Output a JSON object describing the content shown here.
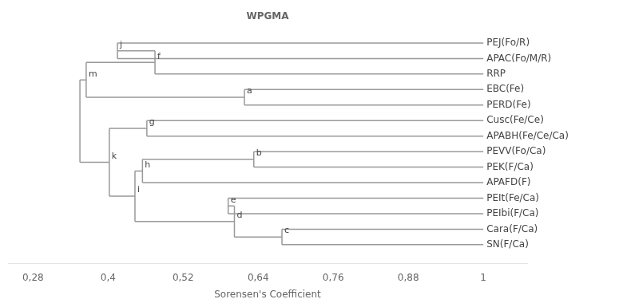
{
  "chart_data": {
    "type": "dendrogram",
    "title": "WPGMA",
    "xlabel": "Sorensen's Coefficient",
    "leaves": [
      "PEJ(Fo/R)",
      "APAC(Fo/M/R)",
      "RRP",
      "EBC(Fe)",
      "PERD(Fe)",
      "Cusc(Fe/Ce)",
      "APABH(Fe/Ce/Ca)",
      "PEVV(Fo/Ca)",
      "PEK(F/Ca)",
      "APAFD(F)",
      "PEIt(Fe/Ca)",
      "PEIbi(F/Ca)",
      "Cara(F/Ca)",
      "SN(F/Ca)"
    ],
    "leaf_x": 1,
    "tree": {
      "x": 0.355,
      "children": [
        {
          "name": "m",
          "x": 0.365,
          "children": [
            {
              "name": "f",
              "x": 0.475,
              "children": [
                {
                  "name": "j",
                  "x": 0.415,
                  "children": [
                    "PEJ(Fo/R)",
                    "APAC(Fo/M/R)"
                  ]
                },
                "RRP"
              ]
            },
            {
              "name": "a",
              "x": 0.618,
              "children": [
                "EBC(Fe)",
                "PERD(Fe)"
              ]
            }
          ]
        },
        {
          "name": "k",
          "x": 0.402,
          "children": [
            {
              "name": "g",
              "x": 0.462,
              "children": [
                "Cusc(Fe/Ce)",
                "APABH(Fe/Ce/Ca)"
              ]
            },
            {
              "name": "i",
              "x": 0.443,
              "children": [
                {
                  "name": "h",
                  "x": 0.455,
                  "children": [
                    {
                      "name": "b",
                      "x": 0.633,
                      "children": [
                        "PEVV(Fo/Ca)",
                        "PEK(F/Ca)"
                      ]
                    },
                    "APAFD(F)"
                  ]
                },
                {
                  "name": "d",
                  "x": 0.602,
                  "children": [
                    {
                      "name": "e",
                      "x": 0.592,
                      "children": [
                        "PEIt(Fe/Ca)",
                        "PEIbi(F/Ca)"
                      ]
                    },
                    {
                      "name": "c",
                      "x": 0.678,
                      "children": [
                        "Cara(F/Ca)",
                        "SN(F/Ca)"
                      ]
                    }
                  ]
                }
              ]
            }
          ]
        }
      ]
    },
    "xlim": [
      0.24,
      1.07
    ],
    "xticks": [
      {
        "value": 0.28,
        "label": "0,28"
      },
      {
        "value": 0.4,
        "label": "0,4"
      },
      {
        "value": 0.52,
        "label": "0,52"
      },
      {
        "value": 0.64,
        "label": "0,64"
      },
      {
        "value": 0.76,
        "label": "0,76"
      },
      {
        "value": 0.88,
        "label": "0,88"
      },
      1
    ],
    "color": "#999999",
    "grid": false
  }
}
